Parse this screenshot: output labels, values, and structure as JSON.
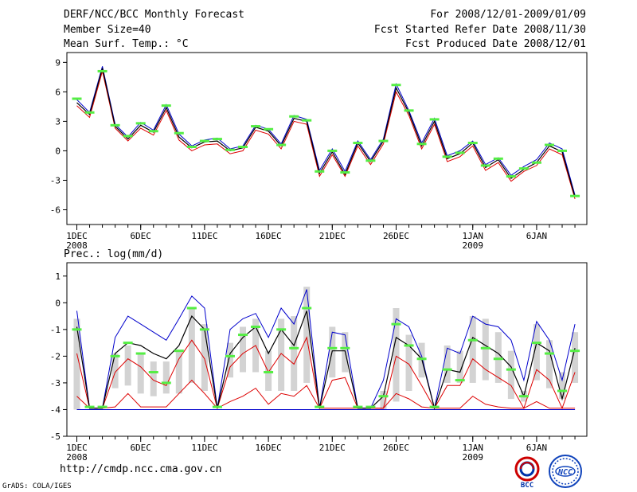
{
  "header": {
    "left": [
      "DERF/NCC/BCC Monthly Forecast",
      "Member Size=40",
      "Mean Surf. Temp.: °C"
    ],
    "right": [
      "For 2008/12/01-2009/01/09",
      "Fcst Started Refer Date 2008/11/30",
      "Fcst Produced Date 2008/12/01"
    ]
  },
  "footer": {
    "url": "http://cmdp.ncc.cma.gov.cn",
    "credit": "GrADS: COLA/IGES",
    "logo_left": "BCC",
    "logo_right": "NCC"
  },
  "colors": {
    "mean": "#000000",
    "upper": "#0000cc",
    "lower": "#dd0000",
    "marker": "#55ee44",
    "bar": "#d3d3d3"
  },
  "chart_data": [
    {
      "type": "line",
      "title": "Mean Surf. Temp.: °C",
      "ylim": [
        -7.5,
        10
      ],
      "yticks": [
        9,
        6,
        3,
        0,
        -3,
        -6
      ],
      "xticks": [
        {
          "day": 1,
          "label": "1DEC",
          "sub": "2008"
        },
        {
          "day": 6,
          "label": "6DEC",
          "sub": ""
        },
        {
          "day": 11,
          "label": "11DEC",
          "sub": ""
        },
        {
          "day": 16,
          "label": "16DEC",
          "sub": ""
        },
        {
          "day": 21,
          "label": "21DEC",
          "sub": ""
        },
        {
          "day": 26,
          "label": "26DEC",
          "sub": ""
        },
        {
          "day": 32,
          "label": "1JAN",
          "sub": "2009"
        },
        {
          "day": 37,
          "label": "6JAN",
          "sub": ""
        }
      ],
      "x": [
        1,
        2,
        3,
        4,
        5,
        6,
        7,
        8,
        9,
        10,
        11,
        12,
        13,
        14,
        15,
        16,
        17,
        18,
        19,
        20,
        21,
        22,
        23,
        24,
        25,
        26,
        27,
        28,
        29,
        30,
        31,
        32,
        33,
        34,
        35,
        36,
        37,
        38,
        39,
        40
      ],
      "series": [
        {
          "name": "upper",
          "values": [
            5.2,
            3.9,
            8.6,
            2.7,
            1.4,
            2.9,
            2.1,
            4.7,
            1.7,
            0.5,
            1.1,
            1.3,
            0.2,
            0.5,
            2.6,
            2.2,
            0.7,
            3.6,
            3.2,
            -2.0,
            0.2,
            -2.1,
            1.0,
            -0.9,
            1.2,
            6.8,
            4.1,
            0.8,
            3.3,
            -0.5,
            0.0,
            1.0,
            -1.4,
            -0.7,
            -2.5,
            -1.6,
            -0.9,
            0.8,
            0.2,
            -4.5
          ]
        },
        {
          "name": "mean",
          "values": [
            4.9,
            3.7,
            8.4,
            2.5,
            1.2,
            2.6,
            1.9,
            4.4,
            1.4,
            0.3,
            0.9,
            1.0,
            0.0,
            0.3,
            2.4,
            2.0,
            0.5,
            3.3,
            3.0,
            -2.3,
            -0.1,
            -2.4,
            0.8,
            -1.1,
            1.0,
            6.4,
            3.9,
            0.5,
            3.0,
            -0.8,
            -0.3,
            0.8,
            -1.7,
            -0.9,
            -2.8,
            -1.9,
            -1.2,
            0.5,
            -0.1,
            -4.7
          ]
        },
        {
          "name": "lower",
          "values": [
            4.6,
            3.4,
            8.1,
            2.3,
            1.0,
            2.3,
            1.6,
            4.1,
            1.1,
            0.0,
            0.6,
            0.7,
            -0.3,
            0.0,
            2.1,
            1.7,
            0.2,
            3.0,
            2.7,
            -2.6,
            -0.4,
            -2.6,
            0.5,
            -1.4,
            0.7,
            6.0,
            3.6,
            0.2,
            2.7,
            -1.1,
            -0.6,
            0.5,
            -2.0,
            -1.2,
            -3.1,
            -2.1,
            -1.5,
            0.2,
            -0.4,
            -4.9
          ]
        }
      ],
      "markers": [
        5.3,
        3.9,
        8.1,
        2.6,
        1.5,
        2.8,
        2.0,
        4.6,
        1.8,
        0.4,
        1.0,
        1.2,
        0.1,
        0.4,
        2.5,
        2.2,
        0.6,
        3.5,
        3.1,
        -2.1,
        0.0,
        -2.2,
        0.8,
        -1.0,
        1.0,
        6.7,
        4.1,
        0.7,
        3.2,
        -0.6,
        -0.2,
        0.8,
        -1.5,
        -0.8,
        -2.6,
        -1.8,
        -1.2,
        0.6,
        0.0,
        -4.6
      ]
    },
    {
      "type": "line",
      "title": "Prec.: log(mm/d)",
      "ylim": [
        -5,
        1.5
      ],
      "yticks": [
        1,
        0,
        -1,
        -2,
        -3,
        -4,
        -5
      ],
      "xticks": [
        {
          "day": 1,
          "label": "1DEC",
          "sub": "2008"
        },
        {
          "day": 6,
          "label": "6DEC",
          "sub": ""
        },
        {
          "day": 11,
          "label": "11DEC",
          "sub": ""
        },
        {
          "day": 16,
          "label": "16DEC",
          "sub": ""
        },
        {
          "day": 21,
          "label": "21DEC",
          "sub": ""
        },
        {
          "day": 26,
          "label": "26DEC",
          "sub": ""
        },
        {
          "day": 32,
          "label": "1JAN",
          "sub": "2009"
        },
        {
          "day": 37,
          "label": "6JAN",
          "sub": ""
        }
      ],
      "x": [
        1,
        2,
        3,
        4,
        5,
        6,
        7,
        8,
        9,
        10,
        11,
        12,
        13,
        14,
        15,
        16,
        17,
        18,
        19,
        20,
        21,
        22,
        23,
        24,
        25,
        26,
        27,
        28,
        29,
        30,
        31,
        32,
        33,
        34,
        35,
        36,
        37,
        38,
        39,
        40
      ],
      "bars": [
        [
          -4,
          -0.6
        ],
        [
          -4,
          -4
        ],
        [
          -4,
          -4
        ],
        [
          -3.2,
          -1.9
        ],
        [
          -3.1,
          -1.6
        ],
        [
          -3.4,
          -1.9
        ],
        [
          -3.5,
          -2.2
        ],
        [
          -3.4,
          -2.2
        ],
        [
          -3.4,
          -1.8
        ],
        [
          -3.0,
          -0.2
        ],
        [
          -3.3,
          -0.8
        ],
        [
          -4,
          -4
        ],
        [
          -2.8,
          -1.5
        ],
        [
          -2.6,
          -0.9
        ],
        [
          -2.6,
          -0.6
        ],
        [
          -3.3,
          -1.8
        ],
        [
          -3.3,
          -0.6
        ],
        [
          -3.3,
          -0.5
        ],
        [
          -3.0,
          0.6
        ],
        [
          -4,
          -4
        ],
        [
          -2.8,
          -0.9
        ],
        [
          -2.6,
          -1.1
        ],
        [
          -4,
          -4
        ],
        [
          -4,
          -4
        ],
        [
          -4,
          -3.3
        ],
        [
          -3.7,
          -0.2
        ],
        [
          -3.3,
          -1.2
        ],
        [
          -2.8,
          -1.5
        ],
        [
          -4,
          -4
        ],
        [
          -3.0,
          -1.6
        ],
        [
          -3.0,
          -1.8
        ],
        [
          -3.0,
          -0.5
        ],
        [
          -2.9,
          -0.6
        ],
        [
          -3.0,
          -1.1
        ],
        [
          -3.6,
          -1.8
        ],
        [
          -3.7,
          -3.3
        ],
        [
          -2.9,
          -0.8
        ],
        [
          -3.2,
          -1.4
        ],
        [
          -3.6,
          -2.6
        ],
        [
          -3.0,
          -1.1
        ]
      ],
      "series": [
        {
          "name": "upper",
          "values": [
            -0.3,
            -3.95,
            -3.95,
            -1.3,
            -0.5,
            -0.8,
            -1.1,
            -1.4,
            -0.6,
            0.25,
            -0.2,
            -3.95,
            -1.0,
            -0.6,
            -0.4,
            -1.3,
            -0.2,
            -0.8,
            0.5,
            -3.95,
            -1.1,
            -1.2,
            -3.95,
            -3.95,
            -2.9,
            -0.6,
            -0.9,
            -2.0,
            -3.95,
            -1.7,
            -1.9,
            -0.5,
            -0.8,
            -0.9,
            -1.4,
            -2.9,
            -0.7,
            -1.4,
            -2.9,
            -0.8
          ]
        },
        {
          "name": "mean",
          "values": [
            -0.9,
            -3.95,
            -3.95,
            -1.9,
            -1.5,
            -1.6,
            -1.9,
            -2.1,
            -1.6,
            -0.5,
            -1.0,
            -3.95,
            -1.9,
            -1.3,
            -0.9,
            -1.9,
            -1.0,
            -1.6,
            -0.3,
            -3.95,
            -1.8,
            -1.8,
            -3.95,
            -3.95,
            -3.5,
            -1.3,
            -1.6,
            -2.1,
            -3.95,
            -2.5,
            -2.6,
            -1.3,
            -1.6,
            -1.9,
            -2.4,
            -3.5,
            -1.5,
            -1.8,
            -3.6,
            -1.7
          ]
        },
        {
          "name": "lower1",
          "values": [
            -1.9,
            -3.95,
            -3.95,
            -2.6,
            -2.1,
            -2.4,
            -2.9,
            -3.1,
            -2.1,
            -1.4,
            -2.1,
            -3.95,
            -2.4,
            -1.9,
            -1.6,
            -2.6,
            -1.9,
            -2.3,
            -1.3,
            -3.95,
            -2.9,
            -2.8,
            -3.95,
            -3.95,
            -3.95,
            -2.0,
            -2.3,
            -3.1,
            -3.95,
            -3.1,
            -3.1,
            -2.1,
            -2.5,
            -2.8,
            -3.1,
            -3.95,
            -2.5,
            -2.9,
            -3.95,
            -2.6
          ]
        },
        {
          "name": "lower2",
          "values": [
            -3.5,
            -3.95,
            -3.95,
            -3.9,
            -3.4,
            -3.9,
            -3.9,
            -3.9,
            -3.4,
            -2.9,
            -3.4,
            -3.95,
            -3.7,
            -3.5,
            -3.2,
            -3.8,
            -3.4,
            -3.5,
            -3.1,
            -3.95,
            -3.95,
            -3.95,
            -3.95,
            -3.95,
            -3.95,
            -3.4,
            -3.6,
            -3.9,
            -3.95,
            -3.95,
            -3.95,
            -3.5,
            -3.8,
            -3.9,
            -3.95,
            -3.95,
            -3.7,
            -3.95,
            -3.95,
            -3.95
          ]
        },
        {
          "name": "zero",
          "values": [
            -4,
            -4,
            -4,
            -4,
            -4,
            -4,
            -4,
            -4,
            -4,
            -4,
            -4,
            -4,
            -4,
            -4,
            -4,
            -4,
            -4,
            -4,
            -4,
            -4,
            -4,
            -4,
            -4,
            -4,
            -4,
            -4,
            -4,
            -4,
            -4,
            -4,
            -4,
            -4,
            -4,
            -4,
            -4,
            -4,
            -4,
            -4,
            -4,
            -4
          ]
        }
      ],
      "markers": [
        -1.0,
        -3.9,
        -3.9,
        -2.0,
        -1.5,
        -1.9,
        -2.6,
        -3.0,
        -1.8,
        -0.2,
        -1.0,
        -3.9,
        -2.0,
        -1.2,
        -0.9,
        -2.6,
        -1.0,
        -1.7,
        -0.2,
        -3.9,
        -1.7,
        -1.7,
        -3.9,
        -3.9,
        -3.5,
        -0.8,
        -1.6,
        -2.1,
        -3.9,
        -2.5,
        -2.9,
        -1.4,
        -1.7,
        -2.1,
        -2.5,
        -3.5,
        -1.5,
        -1.9,
        -3.3,
        -1.8
      ]
    }
  ]
}
